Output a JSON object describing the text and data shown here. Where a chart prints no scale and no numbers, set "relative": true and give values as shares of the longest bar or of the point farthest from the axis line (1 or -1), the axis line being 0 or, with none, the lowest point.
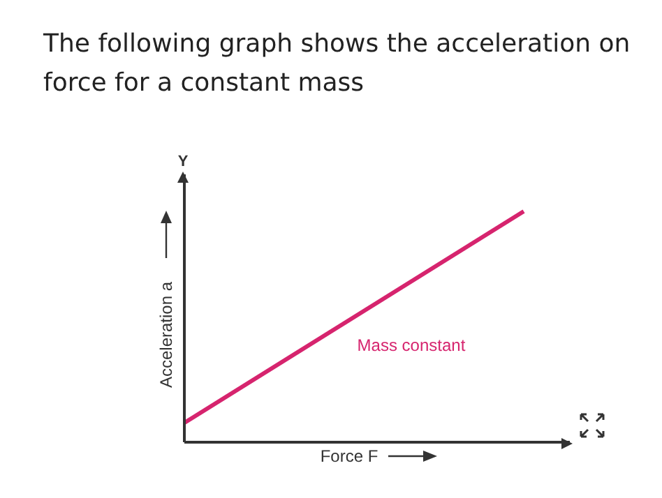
{
  "chart_data": {
    "type": "line",
    "title": "The following graph shows the acceleration on force for a constant mass",
    "xlabel": "Force F",
    "ylabel": "Acceleration a",
    "annotations": [
      "Y"
    ],
    "relative": true,
    "categories": [
      null,
      null
    ],
    "marker": "none",
    "line_style": "solid",
    "series": [
      {
        "name": "Mass constant",
        "color": "#d6246e",
        "values": [
          0.084,
          1
        ]
      }
    ]
  }
}
